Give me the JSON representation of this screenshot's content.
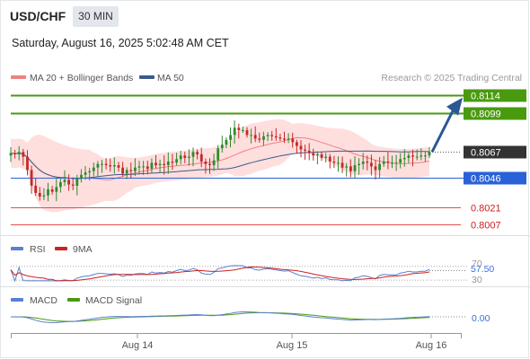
{
  "header": {
    "symbol": "USD/CHF",
    "timeframe": "30 MIN",
    "timestamp": "Saturday, August 16, 2025 5:02:48 AM CET"
  },
  "legend": {
    "items": [
      {
        "label": "MA 20 + Bollinger Bands",
        "color": "#f08080"
      },
      {
        "label": "MA 50",
        "color": "#3a5a8c"
      }
    ],
    "credit": "Research © 2025 Trading Central"
  },
  "colors": {
    "up_candle": "#2e8b2e",
    "down_candle": "#c62828",
    "resistance": "#4a9a10",
    "pivot": "#2962d8",
    "support": "#e05050",
    "last_price_box": "#333333",
    "arrow": "#2b5797",
    "bollinger_fill": "#ffd6d6",
    "rsi": "#5b7fd1",
    "rsi_ma": "#cc2222",
    "macd": "#5b7fd1",
    "macd_signal": "#4a9a10"
  },
  "chart_data": [
    {
      "type": "candlestick",
      "title": "USD/CHF 30 MIN",
      "x_ticks": [
        "Aug 14",
        "Aug 15",
        "Aug 16"
      ],
      "ylim": [
        0.8007,
        0.8114
      ],
      "last_price": 0.8067,
      "levels": [
        {
          "value": 0.8114,
          "label": "0.8114",
          "kind": "resistance"
        },
        {
          "value": 0.8099,
          "label": "0.8099",
          "kind": "resistance"
        },
        {
          "value": 0.8067,
          "label": "0.8067",
          "kind": "last"
        },
        {
          "value": 0.8046,
          "label": "0.8046",
          "kind": "pivot"
        },
        {
          "value": 0.8021,
          "label": "0.8021",
          "kind": "support"
        },
        {
          "value": 0.8007,
          "label": "0.8007",
          "kind": "support"
        }
      ],
      "forecast_arrow": {
        "from": 0.8067,
        "to": 0.8112
      },
      "close": [
        0.8066,
        0.8065,
        0.8067,
        0.8063,
        0.8052,
        0.8039,
        0.8033,
        0.803,
        0.8031,
        0.8036,
        0.8034,
        0.8038,
        0.8042,
        0.8044,
        0.804,
        0.8039,
        0.8045,
        0.8048,
        0.805,
        0.8051,
        0.8054,
        0.8057,
        0.8057,
        0.8056,
        0.8055,
        0.8056,
        0.8054,
        0.8049,
        0.8052,
        0.8051,
        0.8054,
        0.8055,
        0.8055,
        0.8053,
        0.8058,
        0.8056,
        0.8057,
        0.8056,
        0.8059,
        0.8058,
        0.8061,
        0.8064,
        0.8062,
        0.8063,
        0.8067,
        0.8065,
        0.8059,
        0.8057,
        0.8056,
        0.806,
        0.807,
        0.8073,
        0.8077,
        0.8081,
        0.8087,
        0.8085,
        0.8085,
        0.8081,
        0.8081,
        0.8078,
        0.8077,
        0.808,
        0.8081,
        0.808,
        0.8079,
        0.8078,
        0.8077,
        0.8078,
        0.8075,
        0.8072,
        0.8069,
        0.8068,
        0.8066,
        0.8064,
        0.8065,
        0.8062,
        0.8063,
        0.8059,
        0.8058,
        0.8058,
        0.8054,
        0.8055,
        0.8051,
        0.8056,
        0.8057,
        0.8059,
        0.8058,
        0.8055,
        0.8052,
        0.8057,
        0.8059,
        0.8058,
        0.8058,
        0.8058,
        0.8061,
        0.8062,
        0.8064,
        0.8063,
        0.8063,
        0.8064,
        0.8064,
        0.8067
      ],
      "series": [
        {
          "name": "MA 20 + Bollinger Bands"
        },
        {
          "name": "MA 50"
        }
      ]
    },
    {
      "type": "line",
      "title": "RSI",
      "series": [
        {
          "name": "RSI"
        },
        {
          "name": "9MA"
        }
      ],
      "levels": [
        70,
        30
      ],
      "last_value": 57.5,
      "last_label": "57.50",
      "level_labels": [
        "70",
        "30"
      ]
    },
    {
      "type": "line",
      "title": "MACD",
      "series": [
        {
          "name": "MACD"
        },
        {
          "name": "MACD Signal"
        }
      ],
      "zero_label": "0.00"
    }
  ]
}
